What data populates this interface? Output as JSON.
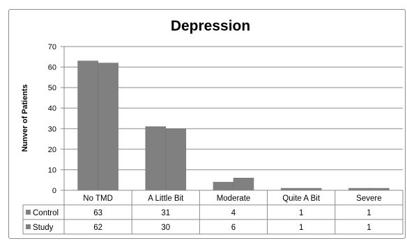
{
  "chart_data": {
    "type": "bar",
    "title": "Depression",
    "xlabel": "",
    "ylabel": "Nunver of Patients",
    "ylim": [
      0,
      70
    ],
    "yticks": [
      0,
      10,
      20,
      30,
      40,
      50,
      60,
      70
    ],
    "grid": true,
    "legend": "data-table",
    "categories": [
      "No TMD",
      "A Little Bit",
      "Moderate",
      "Quite A Bit",
      "Severe"
    ],
    "series": [
      {
        "name": "Control",
        "values": [
          63,
          31,
          4,
          1,
          1
        ],
        "color": "#808080"
      },
      {
        "name": "Study",
        "values": [
          62,
          30,
          6,
          1,
          1
        ],
        "color": "#808080"
      }
    ]
  }
}
